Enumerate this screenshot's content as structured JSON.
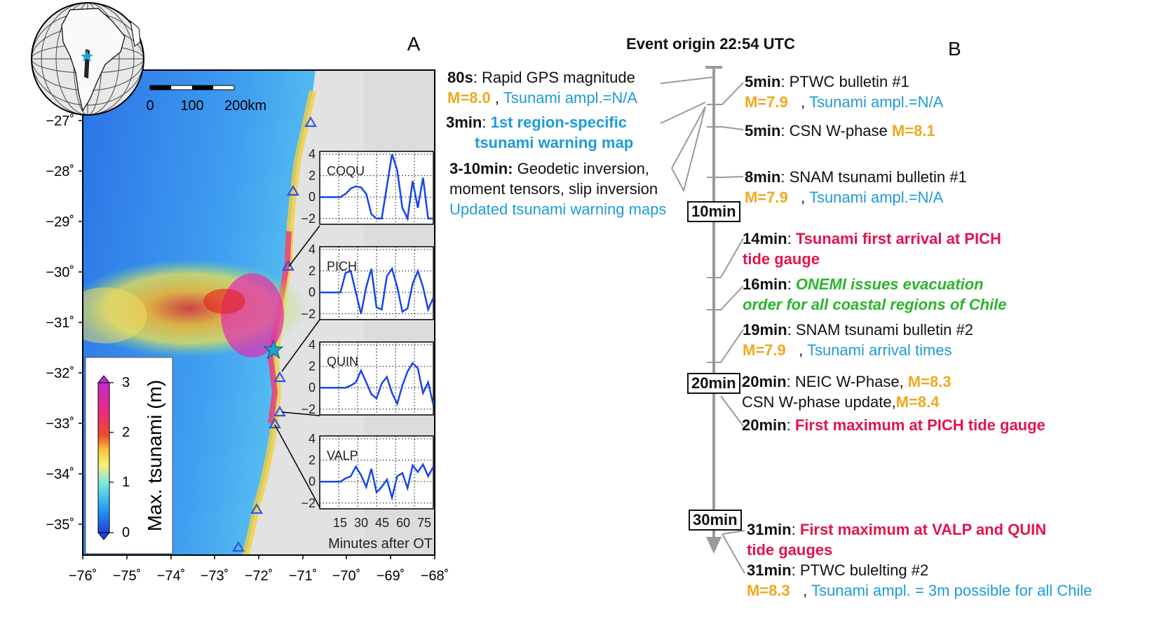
{
  "panel_a": {
    "label": "A",
    "scalebar": {
      "ticks": [
        "0",
        "100",
        "200km"
      ]
    },
    "lat_labels": [
      "−27˚",
      "−28˚",
      "−29˚",
      "−30˚",
      "−31˚",
      "−32˚",
      "−33˚",
      "−34˚",
      "−35˚"
    ],
    "lon_labels": [
      "−76˚",
      "−75˚",
      "−74˚",
      "−73˚",
      "−72˚",
      "−71˚",
      "−70˚",
      "−69˚",
      "−68˚"
    ],
    "colorbar": {
      "label": "Max. tsunami (m)",
      "ticks": [
        "0",
        "1",
        "2",
        "3"
      ]
    },
    "insets": [
      {
        "name": "COQU",
        "y_ticks": [
          "4",
          "2",
          "0",
          "−2"
        ]
      },
      {
        "name": "PICH",
        "y_ticks": [
          "4",
          "2",
          "0",
          "−2"
        ]
      },
      {
        "name": "QUIN",
        "y_ticks": [
          "4",
          "2",
          "0",
          "−2"
        ]
      },
      {
        "name": "VALP",
        "y_ticks": [
          "4",
          "2",
          "0",
          "−2"
        ]
      }
    ],
    "inset_x_ticks": [
      "15",
      "30",
      "45",
      "60",
      "75"
    ],
    "inset_x_label": "Minutes after OT"
  },
  "panel_b": {
    "label": "B",
    "title": "Event origin 22:54 UTC",
    "axis_boxes": [
      "10min",
      "20min",
      "30min"
    ],
    "left_events": [
      {
        "time": "80s",
        "text": ": Rapid GPS magnitude",
        "mag": "M=8.0",
        "sep": " , ",
        "info": "Tsunami ampl.=N/A"
      },
      {
        "time": "3min",
        "sep": ": ",
        "line1": "1st region-specific",
        "line2": "tsunami warning  map"
      },
      {
        "time": "3-10min:",
        "text": " Geodetic inversion,",
        "line2": "moment tensors, slip inversion",
        "line3": "Updated tsunami warning maps"
      }
    ],
    "right_events": [
      {
        "time": "5min",
        "text": ": PTWC bulletin #1",
        "mag": "M=7.9",
        "sep": "   , ",
        "info": "Tsunami ampl.=N/A"
      },
      {
        "time": "5min",
        "text": ": CSN W-phase ",
        "mag": "M=8.1"
      },
      {
        "time": "8min",
        "text": ": SNAM tsunami bulletin #1",
        "mag": "M=7.9",
        "sep": "   , ",
        "info": "Tsunami ampl.=N/A"
      },
      {
        "time": "14min",
        "sep": ": ",
        "alert1": "Tsunami first arrival at PICH",
        "alert2": "tide gauge"
      },
      {
        "time": "16min",
        "sep": ": ",
        "action1": "ONEMI issues evacuation",
        "action2": "order for all coastal regions of Chile"
      },
      {
        "time": "19min",
        "text": ": SNAM tsunami bulletin #2",
        "mag": "M=7.9",
        "sep": "   , ",
        "info": "Tsunami arrival times"
      },
      {
        "time": "20min",
        "text": ": NEIC W-Phase, ",
        "mag": "M=8.3",
        "line2": "CSN W-phase update,",
        "mag2": "M=8.4"
      },
      {
        "time": "20min",
        "sep": ": ",
        "alert1": "First maximum at PICH tide gauge"
      },
      {
        "time": "31min",
        "sep": ": ",
        "alert1": "First maximum at VALP and QUIN",
        "alert2": "tide gauges"
      },
      {
        "time": "31min",
        "text": ": PTWC bulelting #2",
        "mag": "M=8.3",
        "sep": "   , ",
        "info": "Tsunami ampl. = 3m possible for all Chile"
      }
    ]
  },
  "colors": {
    "warning_blue": "#1d9bd9",
    "magnitude_orange": "#f0a81e",
    "alert_red": "#e2144c",
    "action_green": "#2ab52a",
    "timeline_gray": "#9a9a9a",
    "trace_blue": "#1747e8"
  }
}
